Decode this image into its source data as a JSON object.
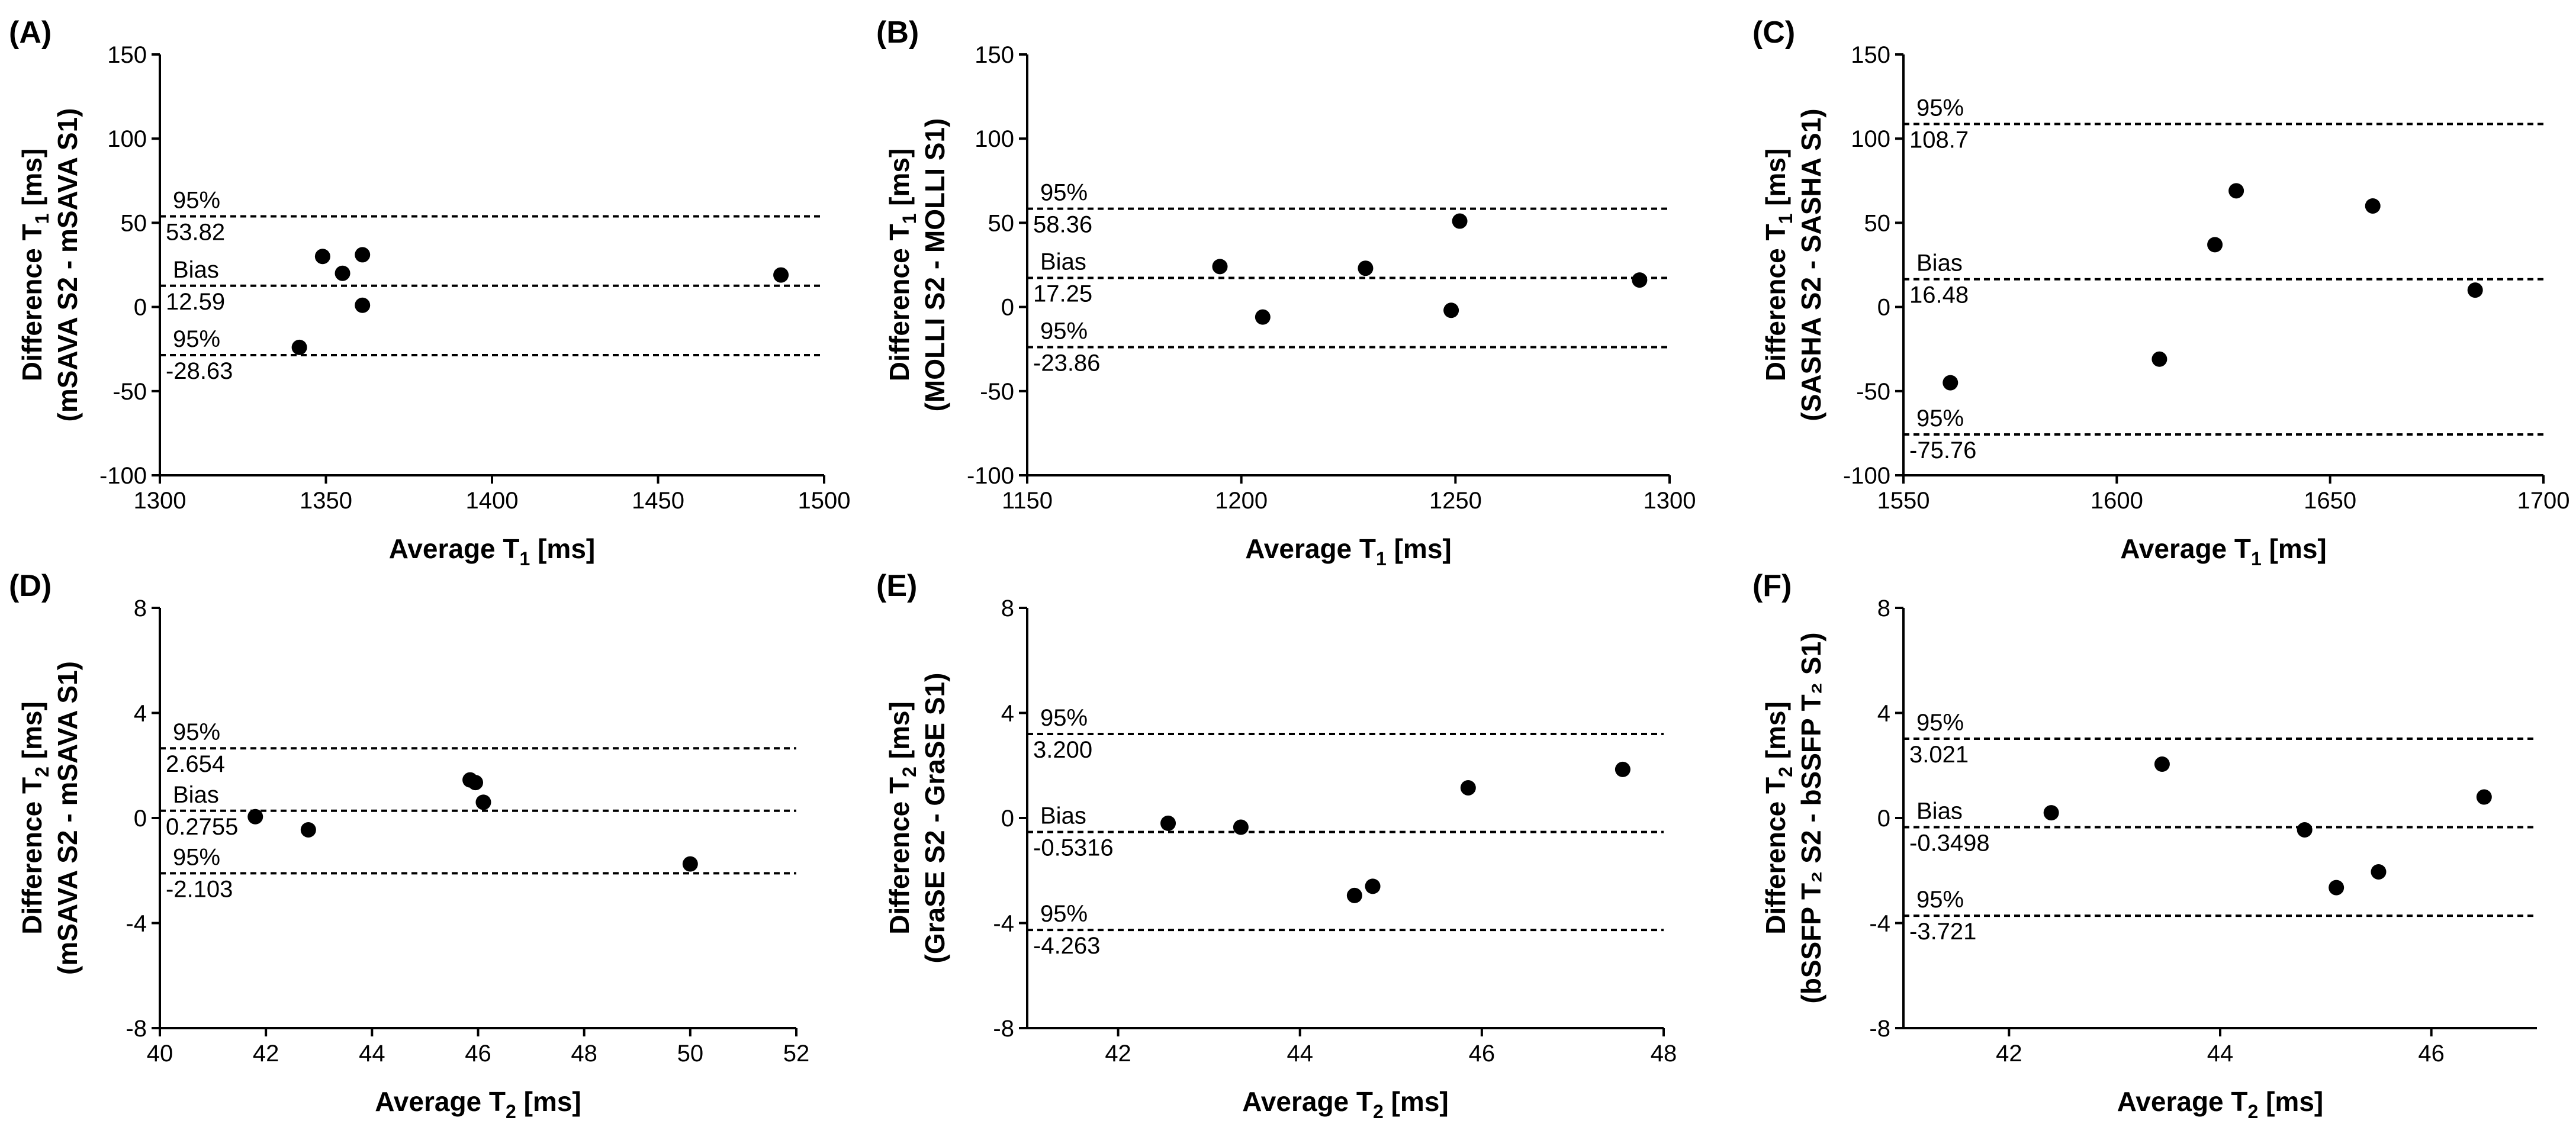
{
  "chart_data": [
    {
      "type": "scatter",
      "panel_label": "(A)",
      "xlabel": {
        "main": "Average T",
        "sub": "1",
        "unit": " [ms]"
      },
      "ylabel": {
        "main": "Difference T",
        "sub": "1",
        "unit": " [ms]",
        "line2": "(mSAVA S2 - mSAVA S1)"
      },
      "xlim": [
        1300,
        1500
      ],
      "xticks": [
        1300,
        1350,
        1400,
        1450,
        1500
      ],
      "xtick_labels": [
        "1300",
        "1350",
        "1400",
        "1450",
        "1500"
      ],
      "ylim": [
        -100,
        150
      ],
      "yticks": [
        -100,
        -50,
        0,
        50,
        100,
        150
      ],
      "ytick_labels": [
        "-100",
        "-50",
        "0",
        "50",
        "100",
        "150"
      ],
      "lines": [
        {
          "name": "95%",
          "value": 53.82,
          "value_label": "53.82"
        },
        {
          "name": "Bias",
          "value": 12.59,
          "value_label": "12.59"
        },
        {
          "name": "95%",
          "value": -28.63,
          "value_label": "-28.63"
        }
      ],
      "x": [
        1342,
        1349,
        1355,
        1361,
        1361,
        1487
      ],
      "y": [
        -24,
        30,
        20,
        31,
        1,
        19
      ]
    },
    {
      "type": "scatter",
      "panel_label": "(B)",
      "xlabel": {
        "main": "Average T",
        "sub": "1",
        "unit": " [ms]"
      },
      "ylabel": {
        "main": "Difference T",
        "sub": "1",
        "unit": " [ms]",
        "line2": "(MOLLI S2 - MOLLI S1)"
      },
      "xlim": [
        1150,
        1300
      ],
      "xticks": [
        1150,
        1200,
        1250,
        1300
      ],
      "xtick_labels": [
        "1150",
        "1200",
        "1250",
        "1300"
      ],
      "ylim": [
        -100,
        150
      ],
      "yticks": [
        -100,
        -50,
        0,
        50,
        100,
        150
      ],
      "ytick_labels": [
        "-100",
        "-50",
        "0",
        "50",
        "100",
        "150"
      ],
      "lines": [
        {
          "name": "95%",
          "value": 58.36,
          "value_label": "58.36"
        },
        {
          "name": "Bias",
          "value": 17.25,
          "value_label": "17.25"
        },
        {
          "name": "95%",
          "value": -23.86,
          "value_label": "-23.86"
        }
      ],
      "x": [
        1195,
        1205,
        1229,
        1249,
        1251,
        1293
      ],
      "y": [
        24,
        -6,
        23,
        -2,
        51,
        16
      ]
    },
    {
      "type": "scatter",
      "panel_label": "(C)",
      "xlabel": {
        "main": "Average T",
        "sub": "1",
        "unit": " [ms]"
      },
      "ylabel": {
        "main": "Difference T",
        "sub": "1",
        "unit": " [ms]",
        "line2": "(SASHA S2 - SASHA S1)"
      },
      "xlim": [
        1550,
        1700
      ],
      "xticks": [
        1550,
        1600,
        1650,
        1700
      ],
      "xtick_labels": [
        "1550",
        "1600",
        "1650",
        "1700"
      ],
      "ylim": [
        -100,
        150
      ],
      "yticks": [
        -100,
        -50,
        0,
        50,
        100,
        150
      ],
      "ytick_labels": [
        "-100",
        "-50",
        "0",
        "50",
        "100",
        "150"
      ],
      "lines": [
        {
          "name": "95%",
          "value": 108.7,
          "value_label": "108.7"
        },
        {
          "name": "Bias",
          "value": 16.48,
          "value_label": "16.48"
        },
        {
          "name": "95%",
          "value": -75.76,
          "value_label": "-75.76"
        }
      ],
      "x": [
        1561,
        1610,
        1623,
        1628,
        1660,
        1684
      ],
      "y": [
        -45,
        -31,
        37,
        69,
        60,
        10
      ]
    },
    {
      "type": "scatter",
      "panel_label": "(D)",
      "xlabel": {
        "main": "Average T",
        "sub": "2",
        "unit": " [ms]"
      },
      "ylabel": {
        "main": "Difference T",
        "sub": "2",
        "unit": " [ms]",
        "line2": "(mSAVA S2 - mSAVA S1)"
      },
      "xlim": [
        40,
        52
      ],
      "xticks": [
        40,
        42,
        44,
        46,
        48,
        50,
        52
      ],
      "xtick_labels": [
        "40",
        "42",
        "44",
        "46",
        "48",
        "50",
        "52"
      ],
      "ylim": [
        -8,
        8
      ],
      "yticks": [
        -8,
        -4,
        0,
        4,
        8
      ],
      "ytick_labels": [
        "-8",
        "-4",
        "0",
        "4",
        "8"
      ],
      "lines": [
        {
          "name": "95%",
          "value": 2.654,
          "value_label": "2.654"
        },
        {
          "name": "Bias",
          "value": 0.2755,
          "value_label": "0.2755"
        },
        {
          "name": "95%",
          "value": -2.103,
          "value_label": "-2.103"
        }
      ],
      "x": [
        41.8,
        42.8,
        45.85,
        45.95,
        46.1,
        50.0
      ],
      "y": [
        0.05,
        -0.45,
        1.45,
        1.35,
        0.6,
        -1.75
      ]
    },
    {
      "type": "scatter",
      "panel_label": "(E)",
      "xlabel": {
        "main": "Average T",
        "sub": "2",
        "unit": " [ms]"
      },
      "ylabel": {
        "main": "Difference T",
        "sub": "2",
        "unit": " [ms]",
        "line2": "(GraSE S2 - GraSE S1)"
      },
      "xlim": [
        41,
        48
      ],
      "xticks": [
        42,
        44,
        46,
        48
      ],
      "xtick_labels": [
        "42",
        "44",
        "46",
        "48"
      ],
      "ylim": [
        -8,
        8
      ],
      "yticks": [
        -8,
        -4,
        0,
        4,
        8
      ],
      "ytick_labels": [
        "-8",
        "-4",
        "0",
        "4",
        "8"
      ],
      "lines": [
        {
          "name": "95%",
          "value": 3.2,
          "value_label": "3.200"
        },
        {
          "name": "Bias",
          "value": -0.5316,
          "value_label": "-0.5316"
        },
        {
          "name": "95%",
          "value": -4.263,
          "value_label": "-4.263"
        }
      ],
      "x": [
        42.55,
        43.35,
        44.6,
        44.8,
        45.85,
        47.55
      ],
      "y": [
        -0.2,
        -0.35,
        -2.95,
        -2.6,
        1.15,
        1.85
      ]
    },
    {
      "type": "scatter",
      "panel_label": "(F)",
      "xlabel": {
        "main": "Average T",
        "sub": "2",
        "unit": " [ms]"
      },
      "ylabel": {
        "main": "Difference T",
        "sub": "2",
        "unit": " [ms]",
        "line2": "(bSSFP T₂ S2 - bSSFP T₂ S1)"
      },
      "xlim": [
        41,
        47
      ],
      "xticks": [
        42,
        44,
        46
      ],
      "xtick_labels": [
        "42",
        "44",
        "46"
      ],
      "ylim": [
        -8,
        8
      ],
      "yticks": [
        -8,
        -4,
        0,
        4,
        8
      ],
      "ytick_labels": [
        "-8",
        "-4",
        "0",
        "4",
        "8"
      ],
      "lines": [
        {
          "name": "95%",
          "value": 3.021,
          "value_label": "3.021"
        },
        {
          "name": "Bias",
          "value": -0.3498,
          "value_label": "-0.3498"
        },
        {
          "name": "95%",
          "value": -3.721,
          "value_label": "-3.721"
        }
      ],
      "x": [
        42.4,
        43.45,
        44.8,
        45.1,
        45.5,
        46.5
      ],
      "y": [
        0.2,
        2.05,
        -0.45,
        -2.65,
        -2.05,
        0.8
      ]
    }
  ]
}
